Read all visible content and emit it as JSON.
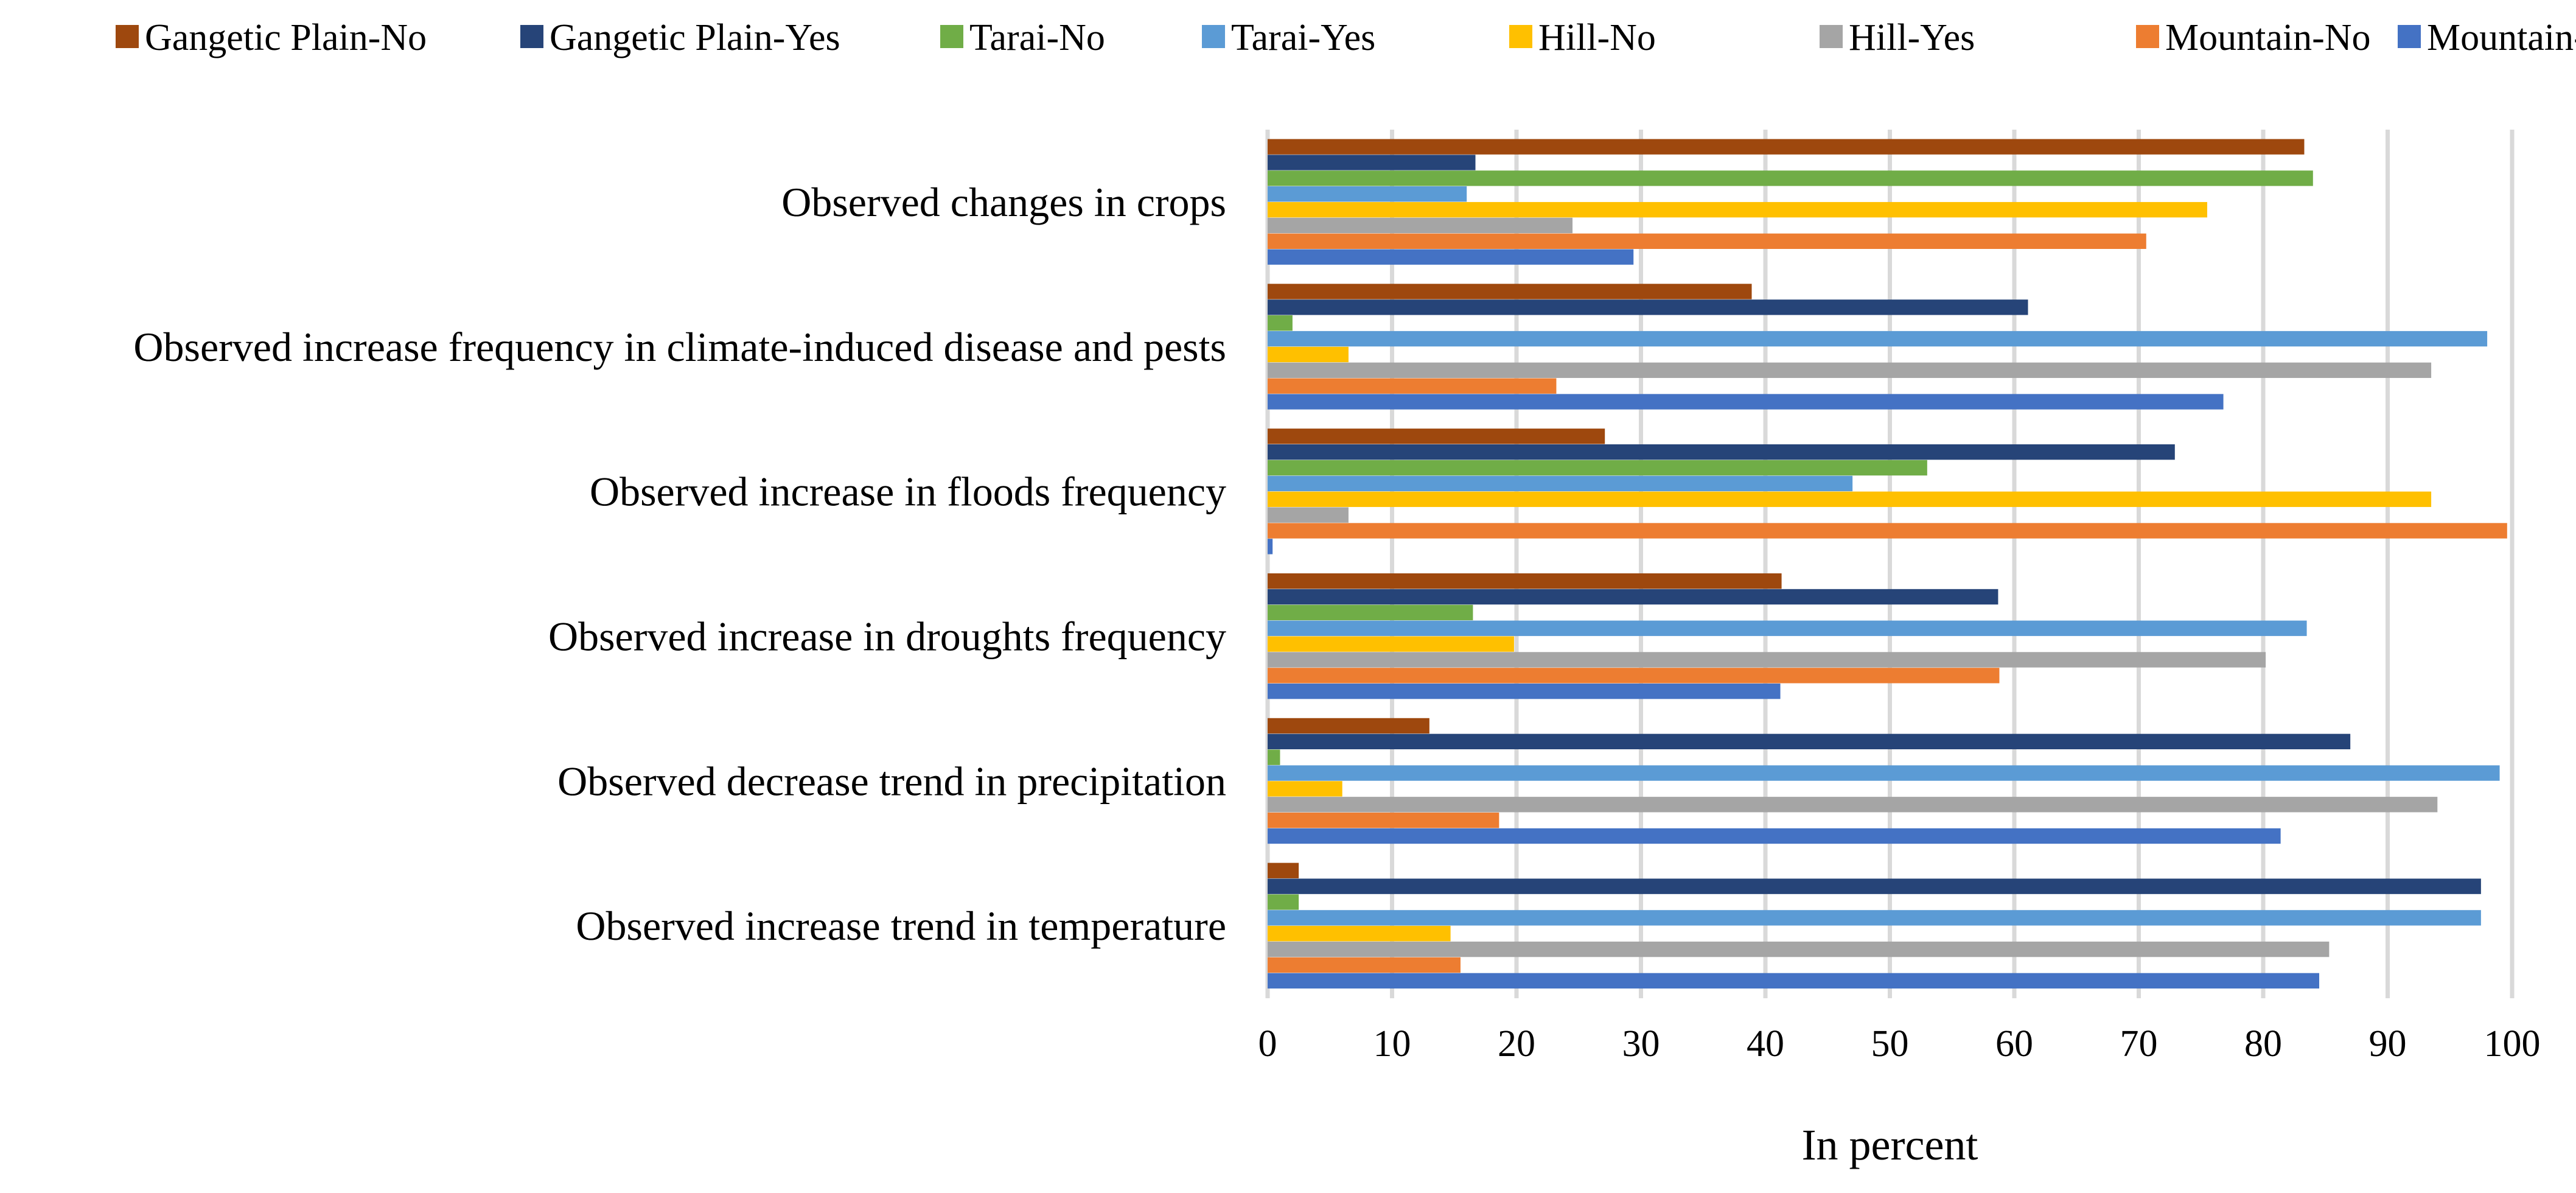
{
  "chart_data": {
    "type": "bar",
    "orientation": "horizontal",
    "title": "",
    "xlabel": "In percent",
    "ylabel": "",
    "xlim": [
      0,
      100
    ],
    "x_ticks": [
      0,
      10,
      20,
      30,
      40,
      50,
      60,
      70,
      80,
      90,
      100
    ],
    "grid": true,
    "legend_position": "top",
    "categories": [
      "Observed changes in crops",
      "Observed increase frequency in climate-induced disease and pests",
      "Observed increase in floods frequency",
      "Observed increase in droughts frequency ",
      "Observed decrease trend in precipitation",
      "Observed increase trend in temperature"
    ],
    "series": [
      {
        "name": "Gangetic Plain-No",
        "color": "#9E480E",
        "values": [
          83.3,
          38.9,
          27.1,
          41.3,
          13.0,
          2.5
        ]
      },
      {
        "name": "Gangetic Plain-Yes",
        "color": "#264478",
        "values": [
          16.7,
          61.1,
          72.9,
          58.7,
          87.0,
          97.5
        ]
      },
      {
        "name": "Tarai-No",
        "color": "#70AD47",
        "values": [
          84.0,
          2.0,
          53.0,
          16.5,
          1.0,
          2.5
        ]
      },
      {
        "name": "Tarai-Yes",
        "color": "#5B9BD5",
        "values": [
          16.0,
          98.0,
          47.0,
          83.5,
          99.0,
          97.5
        ]
      },
      {
        "name": "Hill-No",
        "color": "#FFC000",
        "values": [
          75.5,
          6.5,
          93.5,
          19.8,
          6.0,
          14.7
        ]
      },
      {
        "name": "Hill-Yes",
        "color": "#A5A5A5",
        "values": [
          24.5,
          93.5,
          6.5,
          80.2,
          94.0,
          85.3
        ]
      },
      {
        "name": "Mountain-No",
        "color": "#ED7D31",
        "values": [
          70.6,
          23.2,
          99.6,
          58.8,
          18.6,
          15.5
        ]
      },
      {
        "name": "Mountain-Yes",
        "color": "#4472C4",
        "values": [
          29.4,
          76.8,
          0.4,
          41.2,
          81.4,
          84.5
        ]
      }
    ]
  }
}
